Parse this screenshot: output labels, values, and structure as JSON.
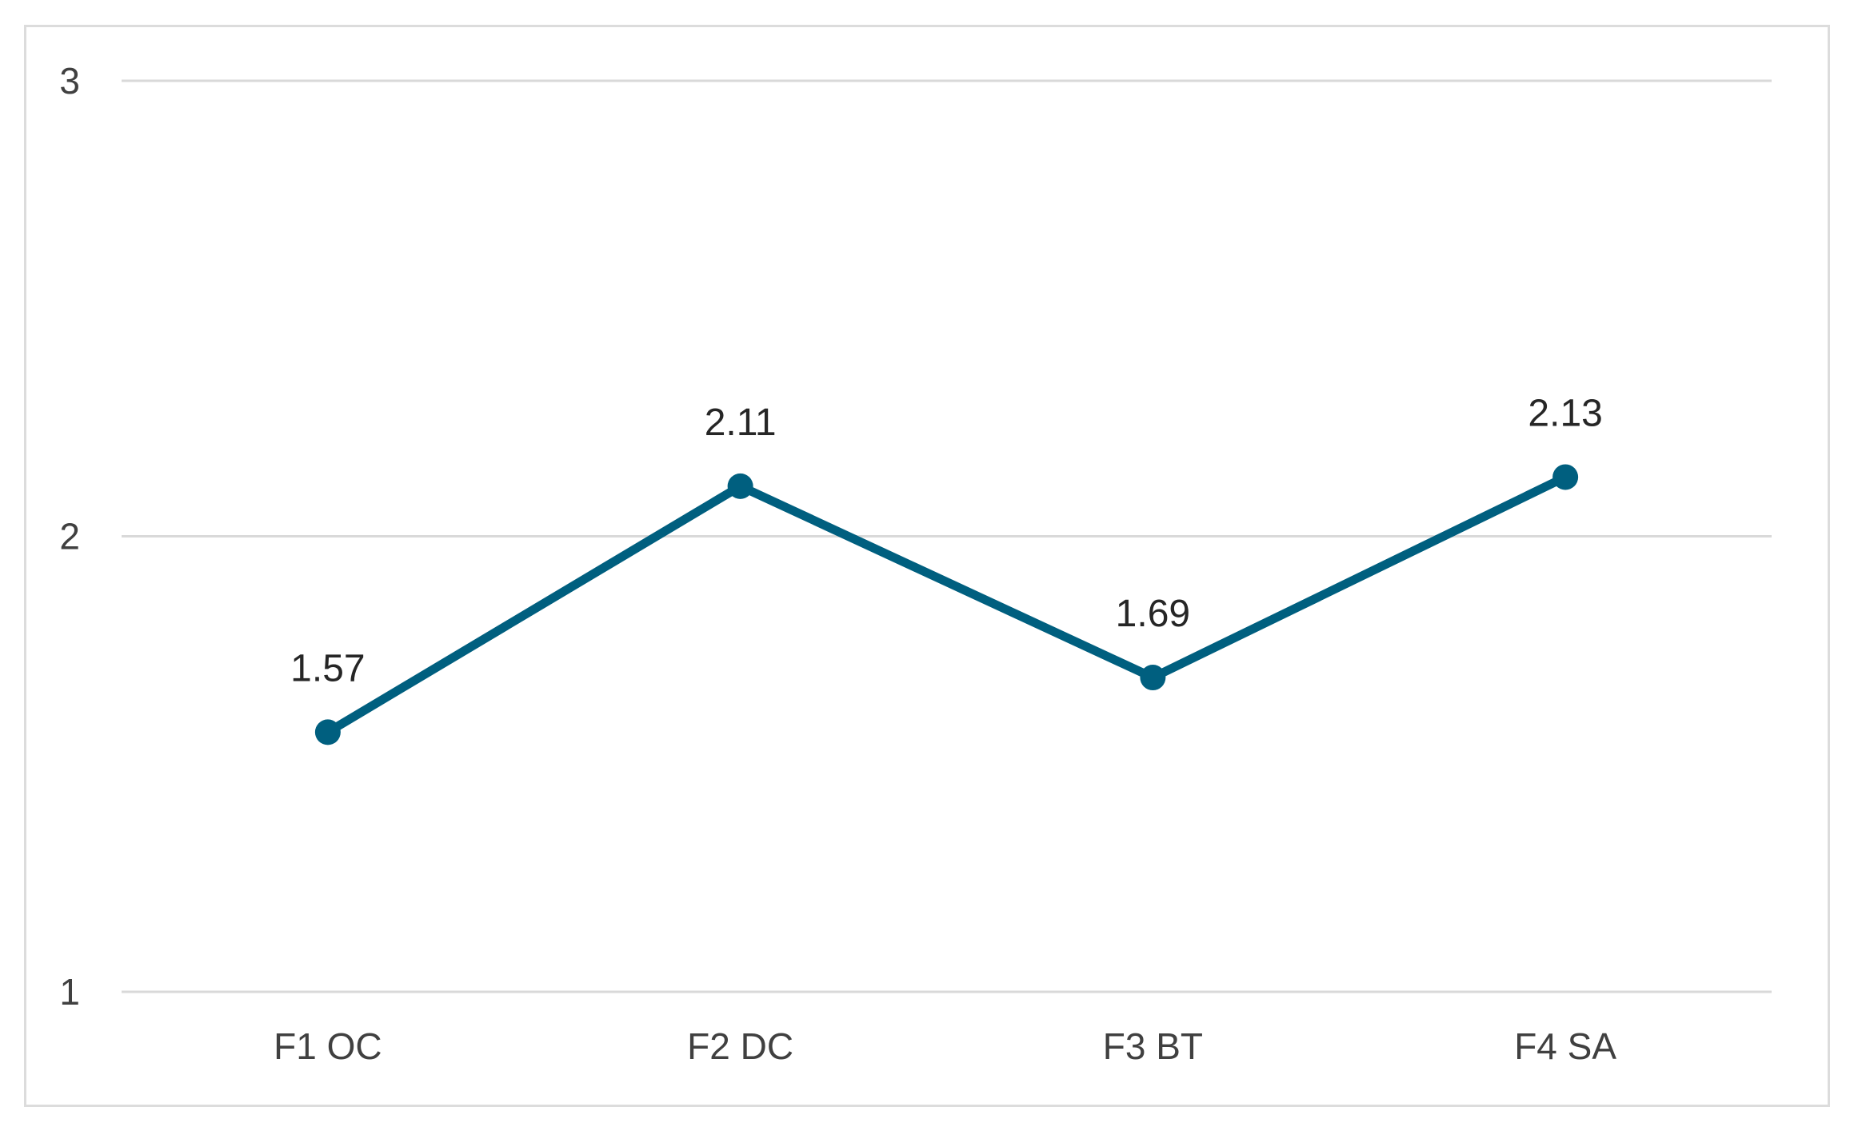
{
  "chart_data": {
    "type": "line",
    "title": "",
    "xlabel": "",
    "ylabel": "",
    "categories": [
      "F1 OC",
      "F2 DC",
      "F3 BT",
      "F4 SA"
    ],
    "series": [
      {
        "values": [
          1.57,
          2.11,
          1.69,
          2.13
        ],
        "color": "#005F7F"
      }
    ],
    "data_labels": [
      "1.57",
      "2.11",
      "1.69",
      "2.13"
    ],
    "ylim": [
      1,
      3
    ],
    "y_ticks": [
      1,
      2,
      3
    ],
    "y_tick_labels": [
      "1",
      "2",
      "3"
    ],
    "grid": true,
    "legend": "none",
    "colors": {
      "line": "#005F7F",
      "grid": "#D9D9D9",
      "text": "#404040"
    }
  }
}
